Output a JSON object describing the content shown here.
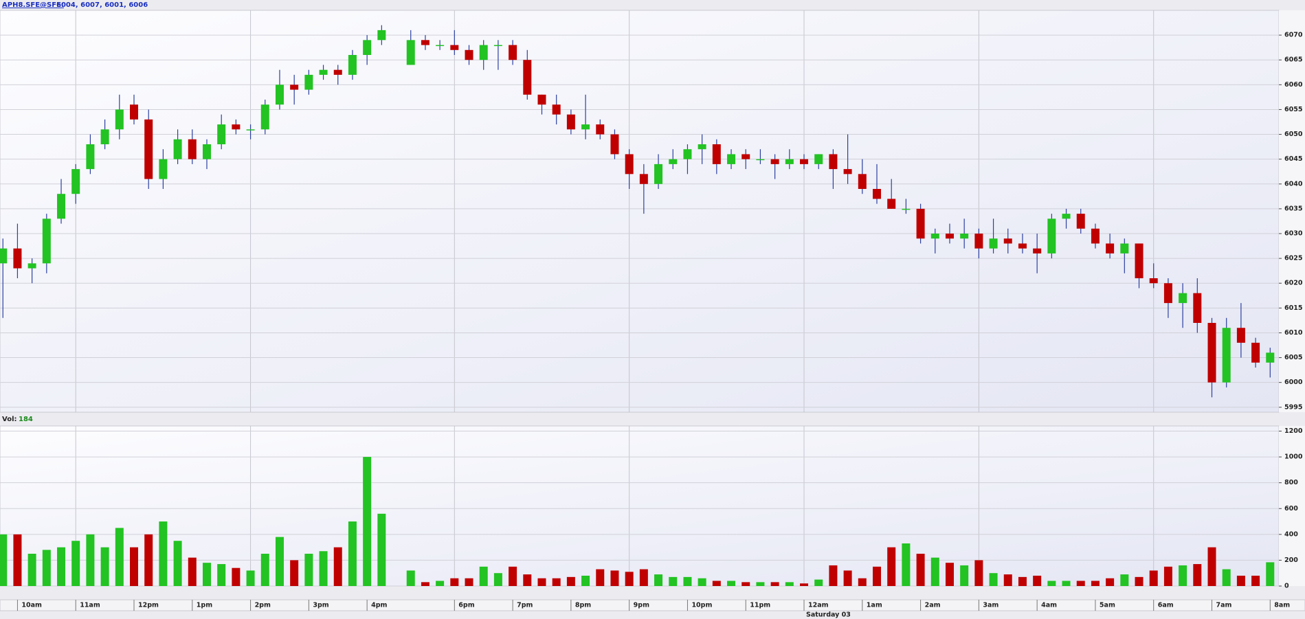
{
  "chart_data": [
    {
      "type": "candlestick",
      "title": "APH8.SFE@SFE:",
      "subtitle": "6004, 6007, 6001, 6006",
      "up_color": "#22c322",
      "down_color": "#c00000",
      "wick_color": "#2b3fa0",
      "x": [
        9.75,
        10,
        10.25,
        10.5,
        10.75,
        11,
        11.25,
        11.5,
        11.75,
        12,
        12.25,
        12.5,
        12.75,
        13,
        13.25,
        13.5,
        13.75,
        14,
        14.25,
        14.5,
        14.75,
        15,
        15.25,
        15.5,
        15.75,
        16,
        16.25,
        17.25,
        17.5,
        17.75,
        18,
        18.25,
        18.5,
        18.75,
        19,
        19.25,
        19.5,
        19.75,
        20,
        20.25,
        20.5,
        20.75,
        21,
        21.25,
        21.5,
        21.75,
        22,
        22.25,
        22.5,
        22.75,
        23,
        23.25,
        23.5,
        23.75,
        24,
        24.25,
        24.5,
        24.75,
        25,
        25.25,
        25.5,
        25.75,
        26,
        26.25,
        26.5,
        26.75,
        27,
        27.25,
        27.5,
        27.75,
        28,
        28.25,
        28.5,
        28.75,
        29,
        29.25,
        29.5,
        29.75,
        30,
        30.25,
        30.5,
        30.75,
        31,
        31.25,
        31.5,
        31.75,
        32
      ],
      "open": [
        6024,
        6027,
        6023,
        6024,
        6033,
        6038,
        6043,
        6048,
        6051,
        6056,
        6053,
        6041,
        6045,
        6049,
        6045,
        6048,
        6052,
        6051,
        6051,
        6056,
        6060,
        6059,
        6062,
        6063,
        6062,
        6066,
        6069,
        6064,
        6069,
        6068,
        6068,
        6067,
        6065,
        6068,
        6068,
        6065,
        6058,
        6056,
        6054,
        6051,
        6052,
        6050,
        6046,
        6042,
        6040,
        6044,
        6045,
        6047,
        6048,
        6044,
        6046,
        6045,
        6045,
        6044,
        6045,
        6044,
        6046,
        6043,
        6042,
        6039,
        6037,
        6035,
        6035,
        6029,
        6030,
        6029,
        6030,
        6027,
        6029,
        6028,
        6027,
        6026,
        6033,
        6034,
        6031,
        6028,
        6026,
        6028,
        6021,
        6020,
        6016,
        6018,
        6012,
        6000,
        6011,
        6008,
        6004
      ],
      "high": [
        6029,
        6032,
        6025,
        6034,
        6041,
        6044,
        6050,
        6053,
        6058,
        6058,
        6055,
        6047,
        6051,
        6051,
        6049,
        6054,
        6053,
        6052,
        6057,
        6063,
        6062,
        6063,
        6064,
        6064,
        6067,
        6070,
        6072,
        6071,
        6070,
        6069,
        6071,
        6068,
        6069,
        6069,
        6069,
        6067,
        6058,
        6058,
        6055,
        6058,
        6053,
        6051,
        6047,
        6044,
        6046,
        6047,
        6048,
        6050,
        6049,
        6047,
        6047,
        6047,
        6046,
        6047,
        6046,
        6046,
        6047,
        6050,
        6045,
        6044,
        6041,
        6037,
        6036,
        6031,
        6032,
        6033,
        6031,
        6033,
        6031,
        6030,
        6030,
        6034,
        6035,
        6035,
        6032,
        6030,
        6029,
        6028,
        6024,
        6021,
        6020,
        6021,
        6013,
        6013,
        6016,
        6009,
        6007
      ],
      "low": [
        6013,
        6021,
        6020,
        6022,
        6032,
        6036,
        6042,
        6047,
        6049,
        6052,
        6039,
        6039,
        6044,
        6044,
        6043,
        6047,
        6050,
        6049,
        6050,
        6055,
        6056,
        6058,
        6061,
        6060,
        6061,
        6064,
        6068,
        6064,
        6067,
        6067,
        6066,
        6064,
        6063,
        6063,
        6064,
        6057,
        6054,
        6052,
        6050,
        6049,
        6049,
        6045,
        6039,
        6034,
        6039,
        6043,
        6042,
        6044,
        6042,
        6043,
        6043,
        6044,
        6041,
        6043,
        6043,
        6043,
        6039,
        6040,
        6038,
        6036,
        6035,
        6034,
        6028,
        6026,
        6028,
        6027,
        6025,
        6026,
        6026,
        6026,
        6022,
        6025,
        6031,
        6030,
        6027,
        6025,
        6022,
        6019,
        6019,
        6013,
        6011,
        6010,
        5997,
        5999,
        6005,
        6003,
        6001
      ],
      "close": [
        6027,
        6023,
        6024,
        6033,
        6038,
        6043,
        6048,
        6051,
        6055,
        6053,
        6041,
        6045,
        6049,
        6045,
        6048,
        6052,
        6051,
        6051,
        6056,
        6060,
        6059,
        6062,
        6063,
        6062,
        6066,
        6069,
        6071,
        6069,
        6068,
        6068,
        6067,
        6065,
        6068,
        6068,
        6065,
        6058,
        6056,
        6054,
        6051,
        6052,
        6050,
        6046,
        6042,
        6040,
        6044,
        6045,
        6047,
        6048,
        6044,
        6046,
        6045,
        6045,
        6044,
        6045,
        6044,
        6046,
        6043,
        6042,
        6039,
        6037,
        6035,
        6035,
        6029,
        6030,
        6029,
        6030,
        6027,
        6029,
        6028,
        6027,
        6026,
        6033,
        6034,
        6031,
        6028,
        6026,
        6028,
        6021,
        6020,
        6016,
        6018,
        6012,
        6000,
        6011,
        6008,
        6004,
        6006
      ],
      "xlim": [
        9.7,
        32.15
      ],
      "ylim": [
        5994,
        6075
      ],
      "yticks": [
        5995,
        6000,
        6005,
        6010,
        6015,
        6020,
        6025,
        6030,
        6035,
        6040,
        6045,
        6050,
        6055,
        6060,
        6065,
        6070
      ],
      "grid": true
    },
    {
      "type": "bar",
      "title": "Vol:",
      "subtitle": "184",
      "x": [
        9.75,
        10,
        10.25,
        10.5,
        10.75,
        11,
        11.25,
        11.5,
        11.75,
        12,
        12.25,
        12.5,
        12.75,
        13,
        13.25,
        13.5,
        13.75,
        14,
        14.25,
        14.5,
        14.75,
        15,
        15.25,
        15.5,
        15.75,
        16,
        16.25,
        17.25,
        17.5,
        17.75,
        18,
        18.25,
        18.5,
        18.75,
        19,
        19.25,
        19.5,
        19.75,
        20,
        20.25,
        20.5,
        20.75,
        21,
        21.25,
        21.5,
        21.75,
        22,
        22.25,
        22.5,
        22.75,
        23,
        23.25,
        23.5,
        23.75,
        24,
        24.25,
        24.5,
        24.75,
        25,
        25.25,
        25.5,
        25.75,
        26,
        26.25,
        26.5,
        26.75,
        27,
        27.25,
        27.5,
        27.75,
        28,
        28.25,
        28.5,
        28.75,
        29,
        29.25,
        29.5,
        29.75,
        30,
        30.25,
        30.5,
        30.75,
        31,
        31.25,
        31.5,
        31.75,
        32
      ],
      "values": [
        400,
        400,
        250,
        280,
        300,
        350,
        400,
        300,
        450,
        300,
        400,
        500,
        350,
        220,
        180,
        170,
        140,
        120,
        250,
        380,
        200,
        250,
        270,
        300,
        500,
        1000,
        560,
        120,
        30,
        40,
        60,
        60,
        150,
        100,
        150,
        90,
        60,
        60,
        70,
        80,
        130,
        120,
        110,
        130,
        90,
        70,
        70,
        60,
        40,
        40,
        30,
        30,
        30,
        30,
        20,
        50,
        160,
        120,
        60,
        150,
        300,
        330,
        250,
        220,
        180,
        160,
        200,
        100,
        90,
        70,
        80,
        40,
        40,
        40,
        40,
        60,
        90,
        70,
        120,
        150,
        160,
        170,
        300,
        130,
        80,
        80,
        184
      ],
      "xlim": [
        9.7,
        32.15
      ],
      "ylim": [
        0,
        1240
      ],
      "yticks": [
        0,
        200,
        400,
        600,
        800,
        1000,
        1200
      ],
      "xticks": [
        {
          "value": 10,
          "label": "10am"
        },
        {
          "value": 11,
          "label": "11am"
        },
        {
          "value": 12,
          "label": "12pm"
        },
        {
          "value": 13,
          "label": "1pm"
        },
        {
          "value": 14,
          "label": "2pm"
        },
        {
          "value": 15,
          "label": "3pm"
        },
        {
          "value": 16,
          "label": "4pm"
        },
        {
          "value": 18,
          "label": "6pm"
        },
        {
          "value": 19,
          "label": "7pm"
        },
        {
          "value": 20,
          "label": "8pm"
        },
        {
          "value": 21,
          "label": "9pm"
        },
        {
          "value": 22,
          "label": "10pm"
        },
        {
          "value": 23,
          "label": "11pm"
        },
        {
          "value": 24,
          "label": "12am"
        },
        {
          "value": 25,
          "label": "1am"
        },
        {
          "value": 26,
          "label": "2am"
        },
        {
          "value": 27,
          "label": "3am"
        },
        {
          "value": 28,
          "label": "4am"
        },
        {
          "value": 29,
          "label": "5am"
        },
        {
          "value": 30,
          "label": "6am"
        },
        {
          "value": 31,
          "label": "7am"
        },
        {
          "value": 32,
          "label": "8am"
        }
      ],
      "annotation": {
        "text": "Saturday 03",
        "x": 24
      },
      "grid": true
    }
  ]
}
